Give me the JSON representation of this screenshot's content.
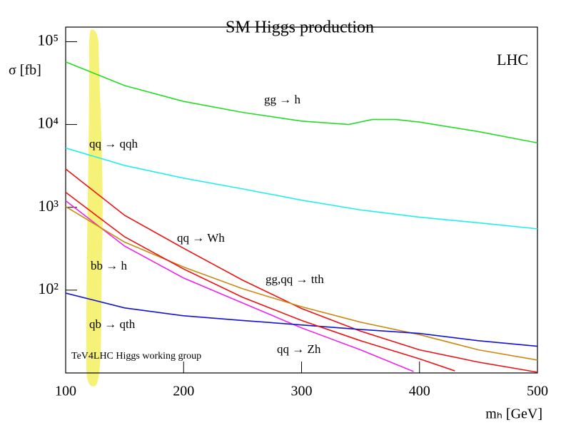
{
  "chart_data": {
    "type": "line",
    "title": "SM Higgs production",
    "x_label": "mₕ [GeV]",
    "y_label": "σ [fb]",
    "annotations": [
      "LHC",
      "TeV4LHC Higgs working group"
    ],
    "log_y": true,
    "xlim": [
      100,
      500
    ],
    "xticks": [
      100,
      200,
      300,
      400,
      500
    ],
    "ylim": [
      10,
      150000
    ],
    "yticks": [
      {
        "value": 100,
        "label": "10²"
      },
      {
        "value": 1000,
        "label": "10³"
      },
      {
        "value": 10000,
        "label": "10⁴"
      },
      {
        "value": 100000,
        "label": "10⁵"
      }
    ],
    "series": [
      {
        "name": "gg → h",
        "color": "#22dd22",
        "x": [
          100,
          150,
          200,
          250,
          300,
          340,
          360,
          380,
          400,
          450,
          500
        ],
        "values": [
          57000,
          29500,
          19000,
          14000,
          11000,
          10000,
          11500,
          11500,
          10700,
          8200,
          6000
        ]
      },
      {
        "name": "qq → qqh",
        "color": "#22eeee",
        "x": [
          100,
          150,
          200,
          250,
          300,
          350,
          400,
          450,
          500
        ],
        "values": [
          5200,
          3200,
          2250,
          1670,
          1220,
          930,
          760,
          650,
          550
        ]
      },
      {
        "name": "qq → Wh",
        "color": "#ee1111",
        "x": [
          100,
          150,
          200,
          250,
          300,
          350,
          400,
          450,
          500
        ],
        "values": [
          2900,
          800,
          320,
          132,
          60,
          32,
          19,
          13.5,
          10.2
        ]
      },
      {
        "name": "bb → h",
        "color": "#ee22ee",
        "x": [
          100,
          150,
          200,
          250,
          300,
          350,
          395
        ],
        "values": [
          1200,
          340,
          140,
          70,
          35,
          19,
          10.4
        ]
      },
      {
        "name": "gg,qq → tth",
        "color": "#cc8811",
        "x": [
          100,
          150,
          200,
          250,
          300,
          350,
          400,
          450,
          500
        ],
        "values": [
          1020,
          380,
          190,
          104,
          63,
          41,
          29,
          19,
          14.3
        ]
      },
      {
        "name": "qb → qth",
        "color": "#1111dd",
        "x": [
          100,
          150,
          200,
          250,
          300,
          350,
          400,
          450,
          500
        ],
        "values": [
          92,
          61,
          49,
          43,
          38,
          33.5,
          30,
          24.5,
          21
        ]
      },
      {
        "name": "qq → Zh",
        "color": "#ee1111",
        "x": [
          100,
          150,
          200,
          250,
          300,
          350,
          400,
          430
        ],
        "values": [
          1520,
          440,
          180,
          82,
          43,
          24.5,
          14.8,
          10.6
        ]
      }
    ]
  }
}
